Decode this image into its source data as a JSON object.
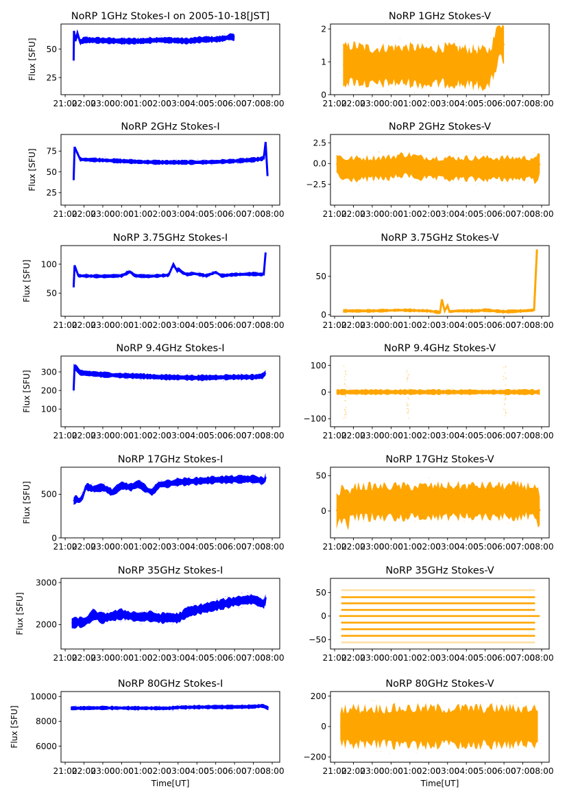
{
  "figure": {
    "xtick_labels": [
      "21:00",
      "22:00",
      "23:00",
      "00:00",
      "01:00",
      "02:00",
      "03:00",
      "04:00",
      "05:00",
      "06:00",
      "07:00",
      "08:00"
    ],
    "ylabel_left": "Flux [SFU]",
    "xlabel_bottom": "Time[UT]",
    "colors": {
      "stokes_i": "#0000ff",
      "stokes_v": "#ffa500"
    }
  },
  "chart_data": [
    {
      "type": "scatter",
      "title": "NoRP 1GHz Stokes-I on 2005-10-18[JST]",
      "ylabel": "Flux [SFU]",
      "xlabel": "",
      "xlim_hours": [
        -0.22,
        11.4
      ],
      "ylim": [
        10,
        72
      ],
      "yticks": [
        25,
        50
      ],
      "ytick_labels": [
        "25",
        "50"
      ],
      "series": [
        {
          "name": "Stokes-I",
          "color": "#0000ff",
          "x_hours": [
            0.45,
            0.47,
            0.55,
            0.65,
            0.8,
            1.0,
            2.0,
            3.0,
            4.0,
            5.0,
            6.0,
            6.5,
            7.0,
            7.5,
            8.0,
            8.5,
            8.8,
            9.0
          ],
          "y": [
            40,
            66,
            57,
            64,
            56,
            58,
            57.5,
            57,
            57,
            58,
            57.5,
            57,
            58,
            58.5,
            58.5,
            59.5,
            61,
            60
          ],
          "spread": 2.5
        }
      ]
    },
    {
      "type": "scatter",
      "title": "NoRP 1GHz Stokes-V",
      "ylabel": "",
      "xlabel": "",
      "xlim_hours": [
        -0.22,
        11.4
      ],
      "ylim": [
        0,
        2.15
      ],
      "yticks": [
        0,
        1,
        2
      ],
      "ytick_labels": [
        "0",
        "1",
        "2"
      ],
      "series": [
        {
          "name": "Stokes-V",
          "color": "#ffa500",
          "x_hours": [
            0.45,
            1.0,
            2.0,
            3.0,
            4.0,
            5.0,
            6.0,
            7.0,
            8.2,
            8.5,
            8.75,
            9.0
          ],
          "y": [
            0.9,
            0.95,
            0.85,
            0.9,
            0.9,
            0.85,
            0.9,
            0.85,
            0.8,
            1.2,
            1.7,
            1.5
          ],
          "spread": 0.55
        }
      ]
    },
    {
      "type": "scatter",
      "title": "NoRP 2GHz Stokes-I",
      "ylabel": "Flux [SFU]",
      "xlabel": "",
      "xlim_hours": [
        -0.22,
        11.4
      ],
      "ylim": [
        10,
        95
      ],
      "yticks": [
        25,
        50,
        75
      ],
      "ytick_labels": [
        "25",
        "50",
        "75"
      ],
      "series": [
        {
          "name": "Stokes-I",
          "color": "#0000ff",
          "x_hours": [
            0.45,
            0.5,
            0.8,
            2.0,
            3.0,
            4.0,
            5.0,
            6.0,
            7.0,
            8.0,
            9.0,
            10.0,
            10.55,
            10.65,
            10.75
          ],
          "y": [
            40,
            80,
            65,
            64,
            63,
            62,
            61.5,
            61.5,
            61.5,
            62,
            63,
            64.5,
            66,
            86,
            45
          ],
          "spread": 2.5
        }
      ]
    },
    {
      "type": "scatter",
      "title": "NoRP 2GHz Stokes-V",
      "ylabel": "",
      "xlabel": "",
      "xlim_hours": [
        -0.22,
        11.4
      ],
      "ylim": [
        -5.0,
        3.5
      ],
      "yticks": [
        -2.5,
        0.0,
        2.5
      ],
      "ytick_labels": [
        "−2.5",
        "0.0",
        "2.5"
      ],
      "series": [
        {
          "name": "Stokes-V",
          "color": "#ffa500",
          "x_hours": [
            0.1,
            0.45,
            3.0,
            3.5,
            4.0,
            4.5,
            6.0,
            8.0,
            10.0,
            10.6,
            10.65,
            10.9
          ],
          "y": [
            0.0,
            -0.7,
            -0.5,
            -0.2,
            -0.2,
            -0.5,
            -0.6,
            -0.6,
            -0.6,
            -0.6,
            -1.0,
            0.0
          ],
          "spread": 1.3
        }
      ]
    },
    {
      "type": "scatter",
      "title": "NoRP 3.75GHz Stokes-I",
      "ylabel": "Flux [SFU]",
      "xlabel": "",
      "xlim_hours": [
        -0.22,
        11.4
      ],
      "ylim": [
        10,
        132
      ],
      "yticks": [
        50,
        100
      ],
      "ytick_labels": [
        "50",
        "100"
      ],
      "series": [
        {
          "name": "Stokes-I",
          "color": "#0000ff",
          "x_hours": [
            0.45,
            0.5,
            0.7,
            2.0,
            3.0,
            3.45,
            3.7,
            4.5,
            5.5,
            5.75,
            5.95,
            6.0,
            6.25,
            6.5,
            6.8,
            7.5,
            8.0,
            8.3,
            9.0,
            10.0,
            10.55,
            10.65
          ],
          "y": [
            60,
            98,
            80,
            79,
            80,
            87,
            80,
            79,
            81,
            100,
            88,
            92,
            85,
            82,
            84,
            80,
            86,
            80,
            82,
            83,
            82,
            120
          ],
          "spread": 3
        }
      ]
    },
    {
      "type": "scatter",
      "title": "NoRP 3.75GHz Stokes-V",
      "ylabel": "",
      "xlabel": "",
      "xlim_hours": [
        -0.22,
        11.4
      ],
      "ylim": [
        -2,
        90
      ],
      "yticks": [
        0,
        50
      ],
      "ytick_labels": [
        "0",
        "50"
      ],
      "series": [
        {
          "name": "Stokes-V",
          "color": "#ffa500",
          "x_hours": [
            0.45,
            2.0,
            3.5,
            5.0,
            5.6,
            5.7,
            5.85,
            6.0,
            6.1,
            6.5,
            7.5,
            8.0,
            9.0,
            10.0,
            10.6,
            10.75
          ],
          "y": [
            5,
            5,
            6,
            5,
            3,
            20,
            5,
            12,
            4,
            5,
            5,
            6,
            4,
            5,
            6,
            85
          ],
          "spread": 2
        }
      ]
    },
    {
      "type": "scatter",
      "title": "NoRP 9.4GHz Stokes-I",
      "ylabel": "Flux [SFU]",
      "xlabel": "",
      "xlim_hours": [
        -0.22,
        11.4
      ],
      "ylim": [
        5,
        385
      ],
      "yticks": [
        100,
        200,
        300
      ],
      "ytick_labels": [
        "100",
        "200",
        "300"
      ],
      "series": [
        {
          "name": "Stokes-I",
          "color": "#0000ff",
          "x_hours": [
            0.45,
            0.5,
            0.8,
            2.0,
            3.0,
            4.0,
            5.0,
            6.0,
            7.0,
            8.0,
            9.0,
            10.0,
            10.5,
            10.65
          ],
          "y": [
            200,
            330,
            295,
            285,
            280,
            277,
            272,
            270,
            268,
            270,
            272,
            272,
            278,
            295
          ],
          "spread": 14
        }
      ]
    },
    {
      "type": "scatter",
      "title": "NoRP 9.4GHz Stokes-V",
      "ylabel": "",
      "xlabel": "",
      "xlim_hours": [
        -0.22,
        11.4
      ],
      "ylim": [
        -130,
        135
      ],
      "yticks": [
        -100,
        0,
        100
      ],
      "ytick_labels": [
        "−100",
        "0",
        "100"
      ],
      "series": [
        {
          "name": "Stokes-V",
          "color": "#ffa500",
          "x_hours": [
            0.1,
            0.45,
            3.9,
            4.0,
            9.0,
            9.1,
            10.7,
            10.9
          ],
          "y": [
            0,
            0,
            0,
            0,
            0,
            0,
            0,
            0
          ],
          "spread": 9,
          "spikes_hours": [
            0.55,
            3.9,
            9.05
          ]
        }
      ]
    },
    {
      "type": "scatter",
      "title": "NoRP 17GHz Stokes-I",
      "ylabel": "Flux [SFU]",
      "xlabel": "",
      "xlim_hours": [
        -0.22,
        11.4
      ],
      "ylim": [
        0,
        810
      ],
      "yticks": [
        0,
        500
      ],
      "ytick_labels": [
        "0",
        "500"
      ],
      "series": [
        {
          "name": "Stokes-I",
          "color": "#0000ff",
          "x_hours": [
            0.45,
            0.6,
            0.75,
            0.95,
            1.1,
            1.5,
            2.0,
            2.5,
            3.0,
            3.5,
            3.9,
            4.3,
            4.6,
            5.0,
            5.5,
            6.0,
            7.0,
            8.0,
            9.0,
            10.0,
            10.6,
            10.65
          ],
          "y": [
            420,
            450,
            420,
            480,
            590,
            560,
            580,
            520,
            600,
            580,
            620,
            560,
            520,
            610,
            620,
            640,
            650,
            665,
            670,
            675,
            650,
            700
          ],
          "spread": 40
        }
      ]
    },
    {
      "type": "scatter",
      "title": "NoRP 17GHz Stokes-V",
      "ylabel": "",
      "xlabel": "",
      "xlim_hours": [
        -0.22,
        11.4
      ],
      "ylim": [
        -38,
        62
      ],
      "yticks": [
        0,
        50
      ],
      "ytick_labels": [
        "0",
        "50"
      ],
      "series": [
        {
          "name": "Stokes-V",
          "color": "#ffa500",
          "x_hours": [
            0.1,
            0.45,
            0.5,
            0.75,
            0.85,
            2.0,
            4.0,
            6.0,
            8.0,
            10.0,
            10.65,
            10.9
          ],
          "y": [
            0,
            12,
            12,
            0,
            13,
            13,
            13,
            14,
            14,
            14,
            14,
            0
          ],
          "spread": 22
        }
      ]
    },
    {
      "type": "scatter",
      "title": "NoRP 35GHz Stokes-I",
      "ylabel": "Flux [SFU]",
      "xlabel": "",
      "xlim_hours": [
        -0.22,
        11.4
      ],
      "ylim": [
        1420,
        3100
      ],
      "yticks": [
        2000,
        3000
      ],
      "ytick_labels": [
        "2000",
        "3000"
      ],
      "series": [
        {
          "name": "Stokes-I",
          "color": "#0000ff",
          "x_hours": [
            0.35,
            0.7,
            1.0,
            1.3,
            1.5,
            1.8,
            2.0,
            2.5,
            3.0,
            3.5,
            4.0,
            4.5,
            5.0,
            5.5,
            6.0,
            6.5,
            7.0,
            7.5,
            8.0,
            8.5,
            9.0,
            9.5,
            10.0,
            10.5,
            10.6,
            10.65
          ],
          "y": [
            2030,
            2060,
            2050,
            2150,
            2250,
            2180,
            2150,
            2200,
            2250,
            2200,
            2180,
            2200,
            2150,
            2170,
            2150,
            2300,
            2350,
            2400,
            2450,
            2500,
            2550,
            2580,
            2600,
            2500,
            2480,
            2650
          ],
          "spread": 110
        }
      ]
    },
    {
      "type": "scatter",
      "title": "NoRP 35GHz Stokes-V",
      "ylabel": "",
      "xlabel": "",
      "xlim_hours": [
        -0.22,
        11.4
      ],
      "ylim": [
        -70,
        80
      ],
      "yticks": [
        -50,
        0,
        50
      ],
      "ytick_labels": [
        "−50",
        "0",
        "50"
      ],
      "series": [
        {
          "name": "Stokes-V",
          "color": "#ffa500",
          "levels": [
            -56,
            -42,
            -28,
            -14,
            0,
            13,
            27,
            40,
            55
          ],
          "x_range_hours": [
            0.35,
            10.65
          ],
          "zero_range_hours": [
            0.25,
            10.9
          ]
        }
      ]
    },
    {
      "type": "scatter",
      "title": "NoRP 80GHz Stokes-I",
      "ylabel": "Flux [SFU]",
      "xlabel": "Time[UT]",
      "xlim_hours": [
        -0.22,
        11.4
      ],
      "ylim": [
        4700,
        10400
      ],
      "yticks": [
        6000,
        8000,
        10000
      ],
      "ytick_labels": [
        "6000",
        "8000",
        "10000"
      ],
      "series": [
        {
          "name": "Stokes-I",
          "color": "#0000ff",
          "x_hours": [
            0.3,
            2.0,
            4.0,
            5.5,
            6.0,
            7.5,
            8.5,
            10.0,
            10.5,
            10.8
          ],
          "y": [
            9050,
            9080,
            9060,
            9050,
            9120,
            9150,
            9150,
            9180,
            9250,
            9050
          ],
          "spread": 150
        }
      ]
    },
    {
      "type": "scatter",
      "title": "NoRP 80GHz Stokes-V",
      "ylabel": "",
      "xlabel": "Time[UT]",
      "xlim_hours": [
        -0.22,
        11.4
      ],
      "ylim": [
        -235,
        230
      ],
      "yticks": [
        -200,
        0,
        200
      ],
      "ytick_labels": [
        "−200",
        "0",
        "200"
      ],
      "series": [
        {
          "name": "Stokes-V",
          "color": "#ffa500",
          "x_hours": [
            0.3,
            2.0,
            4.0,
            6.0,
            8.0,
            10.0,
            10.8
          ],
          "y": [
            0,
            0,
            0,
            0,
            0,
            0,
            0
          ],
          "spread": 120
        }
      ]
    }
  ]
}
